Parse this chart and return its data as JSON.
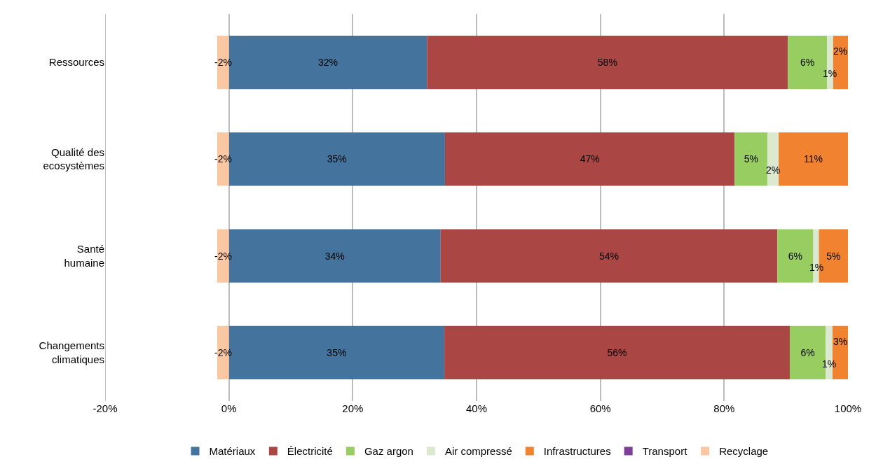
{
  "chart_data": {
    "type": "bar",
    "orientation": "horizontal",
    "stacked": true,
    "categories": [
      "Ressources",
      "Qualité des ecosystèmes",
      "Santé humaine",
      "Changements climatiques"
    ],
    "series": [
      {
        "name": "Matériaux",
        "color": "#44749d",
        "values": [
          32.0,
          34.9,
          34.2,
          34.8
        ],
        "value_labels": [
          "32%",
          "35%",
          "34%",
          "35%"
        ]
      },
      {
        "name": "Électricité",
        "color": "#aa4644",
        "values": [
          58.3,
          46.8,
          54.4,
          55.8
        ],
        "value_labels": [
          "58%",
          "47%",
          "54%",
          "56%"
        ]
      },
      {
        "name": "Gaz argon",
        "color": "#98cd62",
        "values": [
          6.3,
          5.3,
          5.8,
          5.8
        ],
        "value_labels": [
          "6%",
          "5%",
          "6%",
          "6%"
        ]
      },
      {
        "name": "Air compressé",
        "color": "#dce8d0",
        "values": [
          1.0,
          1.8,
          0.9,
          1.1
        ],
        "value_labels": [
          "1%",
          "2%",
          "1%",
          "1%"
        ]
      },
      {
        "name": "Infrastructures",
        "color": "#f08230",
        "values": [
          2.4,
          11.2,
          4.7,
          2.5
        ],
        "value_labels": [
          "2%",
          "11%",
          "5%",
          "3%"
        ]
      },
      {
        "name": "Transport",
        "color": "#7e3f99",
        "values": [
          0,
          0,
          0,
          0
        ],
        "value_labels": [
          null,
          null,
          null,
          null
        ]
      },
      {
        "name": "Recyclage",
        "color": "#f9c7a2",
        "values": [
          -1.9,
          -1.9,
          -1.9,
          -1.9
        ],
        "value_labels": [
          "-2%",
          "-2%",
          "-2%",
          "-2%"
        ]
      }
    ],
    "xlim": [
      -20,
      100
    ],
    "xticks": [
      {
        "value": -20,
        "label": "-20%"
      },
      {
        "value": 0,
        "label": "0%"
      },
      {
        "value": 20,
        "label": "20%"
      },
      {
        "value": 40,
        "label": "40%"
      },
      {
        "value": 60,
        "label": "60%"
      },
      {
        "value": 80,
        "label": "80%"
      },
      {
        "value": 100,
        "label": "100%"
      }
    ],
    "grid": "x",
    "legend": "bottom"
  }
}
